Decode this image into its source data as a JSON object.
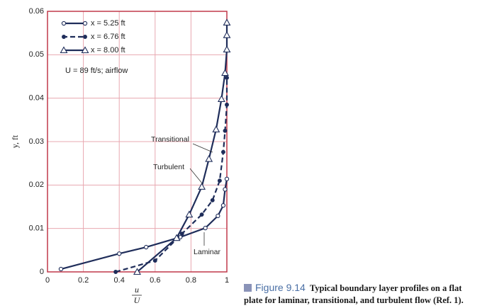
{
  "chart_data": {
    "type": "line",
    "y_label": "y, ft",
    "x_label_numerator": "u",
    "x_label_denominator": "U",
    "xlim": [
      0,
      1
    ],
    "ylim": [
      0,
      0.06
    ],
    "xticks": [
      0,
      0.2,
      0.4,
      0.6,
      0.8,
      1
    ],
    "yticks": [
      0,
      0.01,
      0.02,
      0.03,
      0.04,
      0.05,
      0.06
    ],
    "grid": true,
    "grid_color": "#e8a8b0",
    "frame_color": "#c0394a",
    "legend_note": "U = 89 ft/s; airflow",
    "series": [
      {
        "name": "x = 5.25 ft",
        "color": "#1f2d5a",
        "marker": "open-circle",
        "dash": false,
        "x": [
          0.075,
          0.4,
          0.55,
          0.74,
          0.88,
          0.95,
          0.98,
          0.99,
          1.0
        ],
        "values": [
          0.00065,
          0.0042,
          0.0057,
          0.008,
          0.0101,
          0.0129,
          0.0153,
          0.019,
          0.0214
        ]
      },
      {
        "name": "x = 6.76 ft",
        "color": "#1f2d5a",
        "marker": "filled-circle",
        "dash": true,
        "x": [
          0.38,
          0.6,
          0.75,
          0.86,
          0.92,
          0.96,
          0.98,
          0.99,
          1.0,
          1.0
        ],
        "values": [
          0,
          0.0026,
          0.0088,
          0.0132,
          0.0165,
          0.021,
          0.0276,
          0.0325,
          0.0385,
          0.0447
        ]
      },
      {
        "name": "x = 8.00 ft",
        "color": "#1f2d5a",
        "marker": "open-triangle",
        "dash": false,
        "x": [
          0.5,
          0.72,
          0.79,
          0.86,
          0.9,
          0.94,
          0.97,
          0.99,
          1.0,
          1.0,
          1.0
        ],
        "values": [
          0,
          0.0078,
          0.0132,
          0.0196,
          0.026,
          0.0328,
          0.0398,
          0.0458,
          0.0512,
          0.0545,
          0.0574
        ]
      }
    ],
    "annotations": [
      "Transitional",
      "Turbulent",
      "Laminar"
    ],
    "caption": {
      "figure": "Figure 9.14",
      "lines": [
        "Typical boundary layer profiles on a flat",
        "plate for laminar, transitional, and turbulent flow (Ref. 1)."
      ]
    }
  }
}
